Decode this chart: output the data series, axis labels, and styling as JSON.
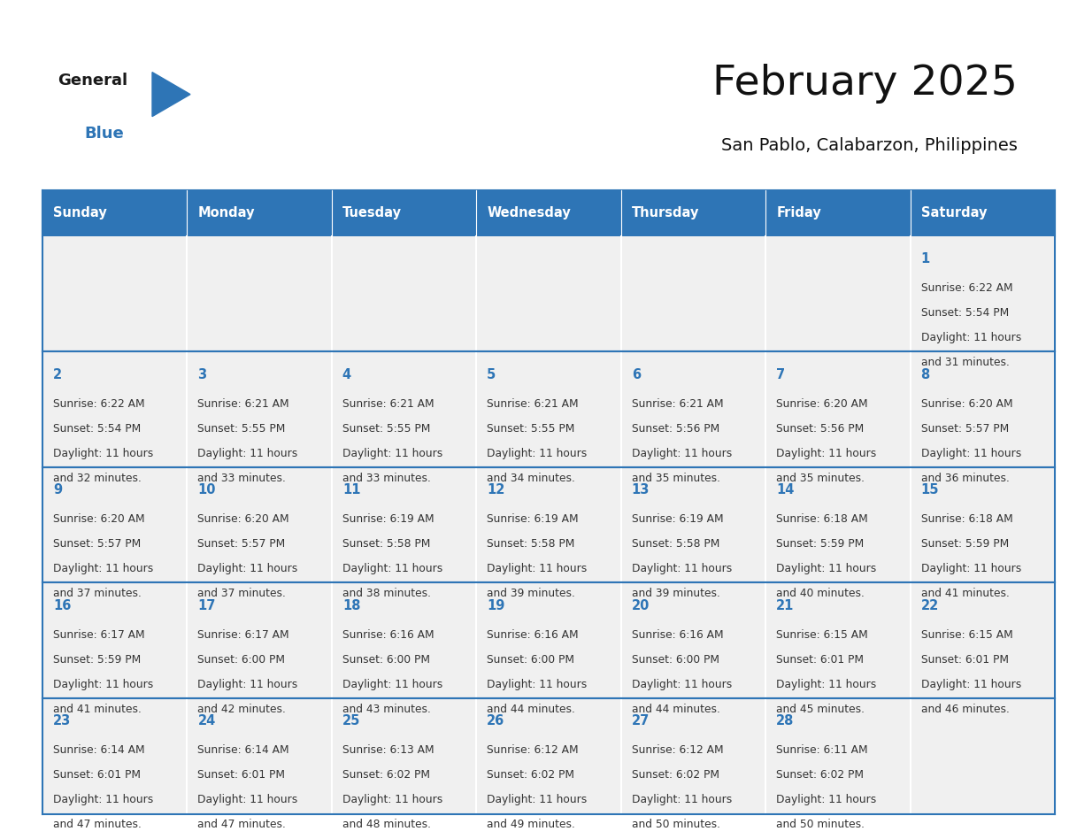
{
  "title": "February 2025",
  "subtitle": "San Pablo, Calabarzon, Philippines",
  "header_bg": "#2E75B6",
  "header_text_color": "#FFFFFF",
  "cell_bg_light": "#F2F2F2",
  "cell_bg_white": "#FFFFFF",
  "cell_border_color": "#2E75B6",
  "cell_inner_border": "#CCCCCC",
  "day_number_color": "#2E75B6",
  "cell_text_color": "#333333",
  "days_of_week": [
    "Sunday",
    "Monday",
    "Tuesday",
    "Wednesday",
    "Thursday",
    "Friday",
    "Saturday"
  ],
  "weeks": [
    [
      {
        "day": 0
      },
      {
        "day": 0
      },
      {
        "day": 0
      },
      {
        "day": 0
      },
      {
        "day": 0
      },
      {
        "day": 0
      },
      {
        "day": 1,
        "sunrise": "6:22 AM",
        "sunset": "5:54 PM",
        "daylight": "11 hours and 31 minutes."
      }
    ],
    [
      {
        "day": 2,
        "sunrise": "6:22 AM",
        "sunset": "5:54 PM",
        "daylight": "11 hours and 32 minutes."
      },
      {
        "day": 3,
        "sunrise": "6:21 AM",
        "sunset": "5:55 PM",
        "daylight": "11 hours and 33 minutes."
      },
      {
        "day": 4,
        "sunrise": "6:21 AM",
        "sunset": "5:55 PM",
        "daylight": "11 hours and 33 minutes."
      },
      {
        "day": 5,
        "sunrise": "6:21 AM",
        "sunset": "5:55 PM",
        "daylight": "11 hours and 34 minutes."
      },
      {
        "day": 6,
        "sunrise": "6:21 AM",
        "sunset": "5:56 PM",
        "daylight": "11 hours and 35 minutes."
      },
      {
        "day": 7,
        "sunrise": "6:20 AM",
        "sunset": "5:56 PM",
        "daylight": "11 hours and 35 minutes."
      },
      {
        "day": 8,
        "sunrise": "6:20 AM",
        "sunset": "5:57 PM",
        "daylight": "11 hours and 36 minutes."
      }
    ],
    [
      {
        "day": 9,
        "sunrise": "6:20 AM",
        "sunset": "5:57 PM",
        "daylight": "11 hours and 37 minutes."
      },
      {
        "day": 10,
        "sunrise": "6:20 AM",
        "sunset": "5:57 PM",
        "daylight": "11 hours and 37 minutes."
      },
      {
        "day": 11,
        "sunrise": "6:19 AM",
        "sunset": "5:58 PM",
        "daylight": "11 hours and 38 minutes."
      },
      {
        "day": 12,
        "sunrise": "6:19 AM",
        "sunset": "5:58 PM",
        "daylight": "11 hours and 39 minutes."
      },
      {
        "day": 13,
        "sunrise": "6:19 AM",
        "sunset": "5:58 PM",
        "daylight": "11 hours and 39 minutes."
      },
      {
        "day": 14,
        "sunrise": "6:18 AM",
        "sunset": "5:59 PM",
        "daylight": "11 hours and 40 minutes."
      },
      {
        "day": 15,
        "sunrise": "6:18 AM",
        "sunset": "5:59 PM",
        "daylight": "11 hours and 41 minutes."
      }
    ],
    [
      {
        "day": 16,
        "sunrise": "6:17 AM",
        "sunset": "5:59 PM",
        "daylight": "11 hours and 41 minutes."
      },
      {
        "day": 17,
        "sunrise": "6:17 AM",
        "sunset": "6:00 PM",
        "daylight": "11 hours and 42 minutes."
      },
      {
        "day": 18,
        "sunrise": "6:16 AM",
        "sunset": "6:00 PM",
        "daylight": "11 hours and 43 minutes."
      },
      {
        "day": 19,
        "sunrise": "6:16 AM",
        "sunset": "6:00 PM",
        "daylight": "11 hours and 44 minutes."
      },
      {
        "day": 20,
        "sunrise": "6:16 AM",
        "sunset": "6:00 PM",
        "daylight": "11 hours and 44 minutes."
      },
      {
        "day": 21,
        "sunrise": "6:15 AM",
        "sunset": "6:01 PM",
        "daylight": "11 hours and 45 minutes."
      },
      {
        "day": 22,
        "sunrise": "6:15 AM",
        "sunset": "6:01 PM",
        "daylight": "11 hours and 46 minutes."
      }
    ],
    [
      {
        "day": 23,
        "sunrise": "6:14 AM",
        "sunset": "6:01 PM",
        "daylight": "11 hours and 47 minutes."
      },
      {
        "day": 24,
        "sunrise": "6:14 AM",
        "sunset": "6:01 PM",
        "daylight": "11 hours and 47 minutes."
      },
      {
        "day": 25,
        "sunrise": "6:13 AM",
        "sunset": "6:02 PM",
        "daylight": "11 hours and 48 minutes."
      },
      {
        "day": 26,
        "sunrise": "6:12 AM",
        "sunset": "6:02 PM",
        "daylight": "11 hours and 49 minutes."
      },
      {
        "day": 27,
        "sunrise": "6:12 AM",
        "sunset": "6:02 PM",
        "daylight": "11 hours and 50 minutes."
      },
      {
        "day": 28,
        "sunrise": "6:11 AM",
        "sunset": "6:02 PM",
        "daylight": "11 hours and 50 minutes."
      },
      {
        "day": 0
      }
    ]
  ]
}
